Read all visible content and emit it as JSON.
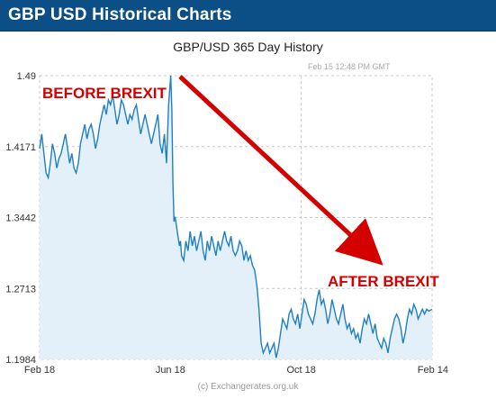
{
  "header": {
    "title": "GBP USD Historical Charts"
  },
  "timestamp_label": "Feb 15  12:48 PM GMT",
  "credit": "(c) Exchangerates.org.uk",
  "colors": {
    "header_bg": "#0b4f86",
    "line": "#1f7fc4",
    "area": "#e3f0fa",
    "annotation": "#d40000"
  },
  "chart_data": {
    "type": "area",
    "title": "GBP/USD  365 Day History",
    "xlabel": "",
    "ylabel": "",
    "grid": true,
    "x_ticks": [
      "Feb 18",
      "Jun 18",
      "Oct 18",
      "Feb 14"
    ],
    "y_ticks": [
      "1.49",
      "1.4171",
      "1.3442",
      "1.2713",
      "1.1984"
    ],
    "ylim": [
      1.1984,
      1.49
    ],
    "x_range_days": [
      0,
      365
    ],
    "series": [
      {
        "points": [
          [
            0,
            1.415
          ],
          [
            2,
            1.43
          ],
          [
            4,
            1.41
          ],
          [
            6,
            1.39
          ],
          [
            8,
            1.385
          ],
          [
            10,
            1.4
          ],
          [
            12,
            1.42
          ],
          [
            14,
            1.41
          ],
          [
            16,
            1.395
          ],
          [
            18,
            1.405
          ],
          [
            20,
            1.41
          ],
          [
            22,
            1.42
          ],
          [
            24,
            1.43
          ],
          [
            26,
            1.415
          ],
          [
            28,
            1.4
          ],
          [
            30,
            1.41
          ],
          [
            32,
            1.395
          ],
          [
            34,
            1.39
          ],
          [
            36,
            1.4
          ],
          [
            38,
            1.42
          ],
          [
            40,
            1.43
          ],
          [
            42,
            1.44
          ],
          [
            44,
            1.425
          ],
          [
            46,
            1.435
          ],
          [
            48,
            1.44
          ],
          [
            50,
            1.43
          ],
          [
            52,
            1.415
          ],
          [
            54,
            1.425
          ],
          [
            56,
            1.44
          ],
          [
            58,
            1.45
          ],
          [
            60,
            1.46
          ],
          [
            62,
            1.45
          ],
          [
            64,
            1.465
          ],
          [
            66,
            1.46
          ],
          [
            68,
            1.47
          ],
          [
            70,
            1.455
          ],
          [
            72,
            1.44
          ],
          [
            74,
            1.45
          ],
          [
            76,
            1.465
          ],
          [
            78,
            1.46
          ],
          [
            80,
            1.45
          ],
          [
            82,
            1.44
          ],
          [
            84,
            1.45
          ],
          [
            86,
            1.445
          ],
          [
            88,
            1.455
          ],
          [
            90,
            1.46
          ],
          [
            92,
            1.445
          ],
          [
            94,
            1.43
          ],
          [
            96,
            1.44
          ],
          [
            98,
            1.45
          ],
          [
            100,
            1.44
          ],
          [
            102,
            1.43
          ],
          [
            104,
            1.42
          ],
          [
            106,
            1.43
          ],
          [
            108,
            1.44
          ],
          [
            110,
            1.45
          ],
          [
            112,
            1.42
          ],
          [
            114,
            1.41
          ],
          [
            116,
            1.43
          ],
          [
            118,
            1.4
          ],
          [
            120,
            1.46
          ],
          [
            122,
            1.49
          ],
          [
            123,
            1.455
          ],
          [
            124,
            1.38
          ],
          [
            125,
            1.34
          ],
          [
            126,
            1.345
          ],
          [
            128,
            1.33
          ],
          [
            130,
            1.315
          ],
          [
            131,
            1.32
          ],
          [
            132,
            1.305
          ],
          [
            134,
            1.3
          ],
          [
            136,
            1.32
          ],
          [
            138,
            1.31
          ],
          [
            140,
            1.33
          ],
          [
            142,
            1.315
          ],
          [
            144,
            1.325
          ],
          [
            146,
            1.31
          ],
          [
            148,
            1.32
          ],
          [
            150,
            1.33
          ],
          [
            152,
            1.31
          ],
          [
            154,
            1.3
          ],
          [
            156,
            1.32
          ],
          [
            158,
            1.31
          ],
          [
            160,
            1.325
          ],
          [
            162,
            1.315
          ],
          [
            164,
            1.305
          ],
          [
            166,
            1.32
          ],
          [
            168,
            1.31
          ],
          [
            170,
            1.32
          ],
          [
            172,
            1.33
          ],
          [
            174,
            1.32
          ],
          [
            176,
            1.315
          ],
          [
            178,
            1.325
          ],
          [
            180,
            1.31
          ],
          [
            182,
            1.305
          ],
          [
            184,
            1.31
          ],
          [
            186,
            1.32
          ],
          [
            188,
            1.315
          ],
          [
            190,
            1.3
          ],
          [
            192,
            1.31
          ],
          [
            194,
            1.3
          ],
          [
            196,
            1.305
          ],
          [
            198,
            1.295
          ],
          [
            200,
            1.29
          ],
          [
            202,
            1.275
          ],
          [
            204,
            1.25
          ],
          [
            206,
            1.215
          ],
          [
            208,
            1.205
          ],
          [
            210,
            1.21
          ],
          [
            212,
            1.215
          ],
          [
            214,
            1.205
          ],
          [
            216,
            1.21
          ],
          [
            218,
            1.215
          ],
          [
            220,
            1.2
          ],
          [
            222,
            1.21
          ],
          [
            224,
            1.225
          ],
          [
            226,
            1.24
          ],
          [
            228,
            1.235
          ],
          [
            230,
            1.23
          ],
          [
            232,
            1.245
          ],
          [
            234,
            1.25
          ],
          [
            236,
            1.24
          ],
          [
            238,
            1.235
          ],
          [
            240,
            1.245
          ],
          [
            242,
            1.23
          ],
          [
            244,
            1.245
          ],
          [
            246,
            1.26
          ],
          [
            248,
            1.255
          ],
          [
            250,
            1.245
          ],
          [
            252,
            1.24
          ],
          [
            254,
            1.235
          ],
          [
            256,
            1.245
          ],
          [
            258,
            1.26
          ],
          [
            260,
            1.27
          ],
          [
            262,
            1.255
          ],
          [
            264,
            1.26
          ],
          [
            266,
            1.25
          ],
          [
            268,
            1.235
          ],
          [
            270,
            1.245
          ],
          [
            272,
            1.26
          ],
          [
            274,
            1.25
          ],
          [
            276,
            1.24
          ],
          [
            278,
            1.235
          ],
          [
            280,
            1.245
          ],
          [
            282,
            1.255
          ],
          [
            284,
            1.24
          ],
          [
            286,
            1.23
          ],
          [
            288,
            1.235
          ],
          [
            290,
            1.225
          ],
          [
            292,
            1.23
          ],
          [
            294,
            1.22
          ],
          [
            296,
            1.225
          ],
          [
            298,
            1.215
          ],
          [
            300,
            1.23
          ],
          [
            302,
            1.24
          ],
          [
            304,
            1.235
          ],
          [
            306,
            1.245
          ],
          [
            308,
            1.235
          ],
          [
            310,
            1.225
          ],
          [
            312,
            1.235
          ],
          [
            314,
            1.22
          ],
          [
            316,
            1.215
          ],
          [
            318,
            1.21
          ],
          [
            320,
            1.22
          ],
          [
            322,
            1.215
          ],
          [
            324,
            1.205
          ],
          [
            326,
            1.22
          ],
          [
            328,
            1.23
          ],
          [
            330,
            1.24
          ],
          [
            332,
            1.245
          ],
          [
            334,
            1.24
          ],
          [
            336,
            1.23
          ],
          [
            338,
            1.215
          ],
          [
            340,
            1.225
          ],
          [
            342,
            1.24
          ],
          [
            344,
            1.25
          ],
          [
            346,
            1.245
          ],
          [
            348,
            1.255
          ],
          [
            350,
            1.25
          ],
          [
            352,
            1.24
          ],
          [
            354,
            1.245
          ],
          [
            356,
            1.25
          ],
          [
            358,
            1.245
          ],
          [
            360,
            1.25
          ],
          [
            362,
            1.248
          ],
          [
            365,
            1.25
          ]
        ]
      }
    ],
    "annotations": [
      "BEFORE BREXIT",
      "AFTER BREXIT"
    ]
  }
}
